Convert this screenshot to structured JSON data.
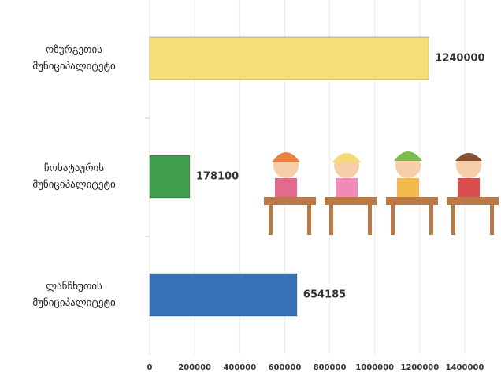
{
  "chart_data": {
    "type": "bar",
    "orientation": "horizontal",
    "categories": [
      "ოზურგეთის მუნიციპალიტეტი",
      "ჩოხატაურის მუნიციპალიტეტი",
      "ლანჩხუთის მუნიციპალიტეტი"
    ],
    "values": [
      1240000,
      178100,
      654185
    ],
    "colors": [
      "#f7df78",
      "#3f9e4e",
      "#3a72b8"
    ],
    "xlim": [
      0,
      1400000
    ],
    "xticks": [
      0,
      200000,
      400000,
      600000,
      800000,
      1000000,
      1200000,
      1400000
    ],
    "grid": true
  }
}
